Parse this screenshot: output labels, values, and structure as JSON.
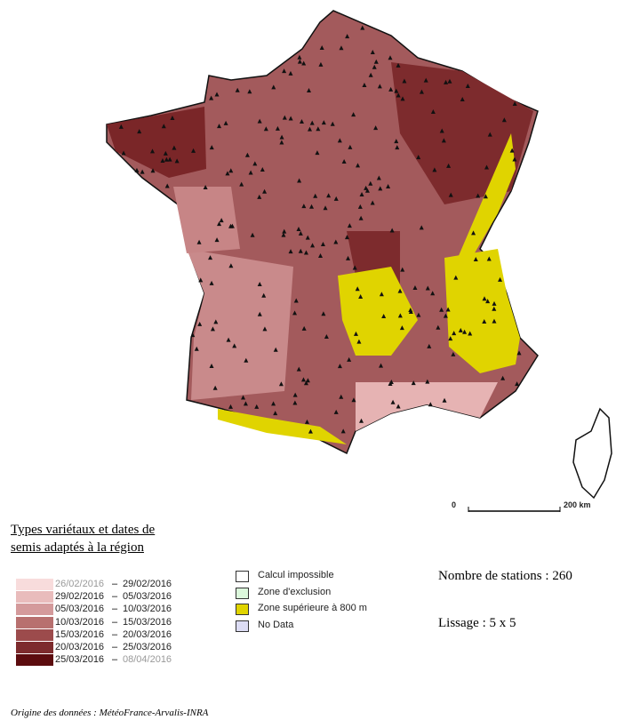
{
  "legend": {
    "title": [
      "Types variétaux et dates de",
      "semis adaptés à la région"
    ],
    "items": [
      {
        "from": "26/02/2016",
        "to": "29/02/2016",
        "color": "#f8dcdc"
      },
      {
        "from": "29/02/2016",
        "to": "05/03/2016",
        "color": "#e9bcbc"
      },
      {
        "from": "05/03/2016",
        "to": "10/03/2016",
        "color": "#d49a9b"
      },
      {
        "from": "10/03/2016",
        "to": "15/03/2016",
        "color": "#b8706f"
      },
      {
        "from": "15/03/2016",
        "to": "20/03/2016",
        "color": "#9c4b4c"
      },
      {
        "from": "20/03/2016",
        "to": "25/03/2016",
        "color": "#7d2b2d"
      },
      {
        "from": "25/03/2016",
        "to": "08/04/2016",
        "color": "#5c0c0f"
      }
    ]
  },
  "zones": [
    {
      "label": "Calcul  impossible",
      "color": "#ffffff"
    },
    {
      "label": "Zone d'exclusion",
      "color": "#dcf8dc"
    },
    {
      "label": "Zone supérieure à 800 m",
      "color": "#e0d400"
    },
    {
      "label": "No Data",
      "color": "#dcdcf4"
    }
  ],
  "stats": {
    "stations": "Nombre de stations : 260",
    "smoothing": "Lissage : 5 x 5"
  },
  "scale": {
    "start": "0",
    "end": "200 km"
  },
  "source": "Origine des données : MétéoFrance-Arvalis-INRA"
}
